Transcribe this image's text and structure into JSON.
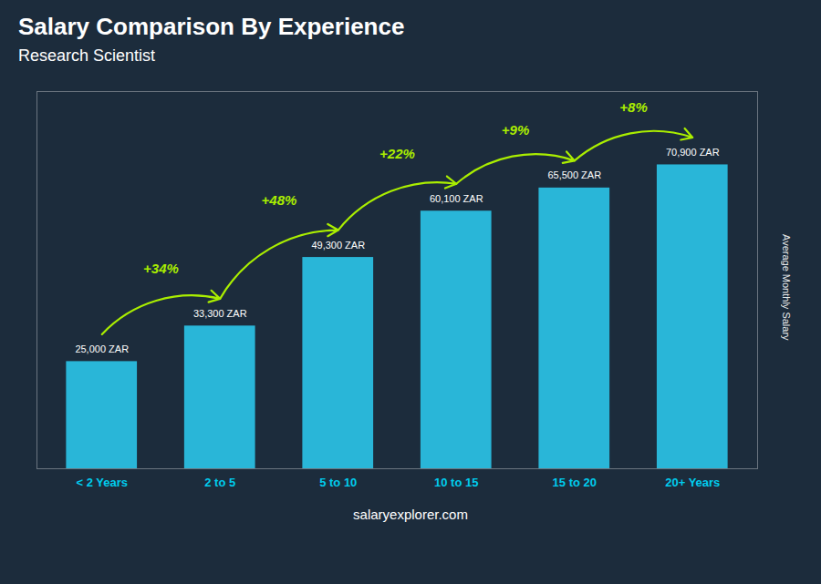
{
  "chart_data": {
    "type": "bar",
    "title": "Salary Comparison By Experience",
    "subtitle": "Research Scientist",
    "categories": [
      "< 2 Years",
      "2 to 5",
      "5 to 10",
      "10 to 15",
      "15 to 20",
      "20+ Years"
    ],
    "values": [
      25000,
      33300,
      49300,
      60100,
      65500,
      70900
    ],
    "value_labels": [
      "25,000 ZAR",
      "33,300 ZAR",
      "49,300 ZAR",
      "60,100 ZAR",
      "65,500 ZAR",
      "70,900 ZAR"
    ],
    "data_labels": true,
    "color": "#29b6d8",
    "ylim": [
      0,
      88000
    ],
    "yticks": [],
    "ylabel": "Average Monthly Salary",
    "tick_labels": "x",
    "annotations": [
      "+34%",
      "+48%",
      "+22%",
      "+9%",
      "+8%"
    ],
    "caption": "salaryexplorer.com"
  }
}
